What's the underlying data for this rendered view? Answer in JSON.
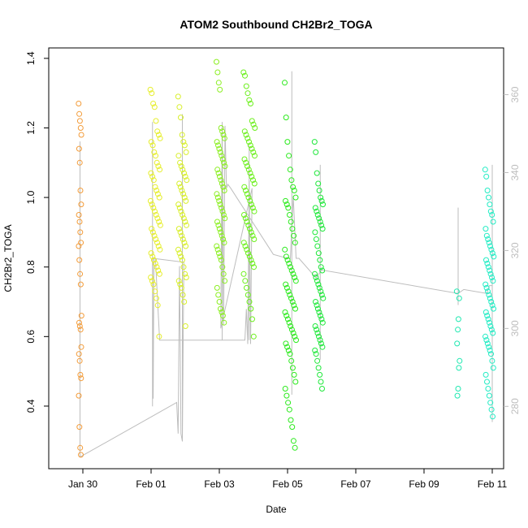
{
  "chart_data": {
    "type": "scatter",
    "title": "ATOM2 Southbound CH2Br2_TOGA",
    "xlabel": "Date",
    "ylabel": "CH2Br2_TOGA",
    "xlim": [
      "2017-01-29T00:00",
      "2017-02-11T08:00"
    ],
    "ylim": [
      0.22,
      1.43
    ],
    "y2lim": [
      264,
      372
    ],
    "x_ticks": [
      {
        "label": "Jan 30",
        "date": "2017-01-30"
      },
      {
        "label": "Feb 01",
        "date": "2017-02-01"
      },
      {
        "label": "Feb 03",
        "date": "2017-02-03"
      },
      {
        "label": "Feb 05",
        "date": "2017-02-05"
      },
      {
        "label": "Feb 07",
        "date": "2017-02-07"
      },
      {
        "label": "Feb 09",
        "date": "2017-02-09"
      },
      {
        "label": "Feb 11",
        "date": "2017-02-11"
      }
    ],
    "y_ticks": [
      0.4,
      0.6,
      0.8,
      1.0,
      1.2,
      1.4
    ],
    "y_tick_labels": [
      "0.4",
      "0.6",
      "0.8",
      "1.0",
      "1.2",
      "1.4"
    ],
    "y2_ticks": [
      280,
      300,
      320,
      340,
      360
    ],
    "y2_tick_labels": [
      "280",
      "300",
      "320",
      "340",
      "360"
    ],
    "grid": false,
    "secondary_line_color": "#bdbdbd",
    "clusters": [
      {
        "center": "2017-01-29T22:00",
        "width_h": 2,
        "color": "#f39c3a",
        "values": [
          1.27,
          1.24,
          1.22,
          1.2,
          1.18,
          1.14,
          1.1,
          1.02,
          0.98,
          0.95,
          0.93,
          0.9,
          0.87,
          0.86,
          0.82,
          0.78,
          0.75,
          0.66,
          0.64,
          0.63,
          0.62,
          0.57,
          0.55,
          0.53,
          0.49,
          0.48,
          0.43,
          0.34,
          0.28,
          0.26
        ]
      },
      {
        "center": "2017-02-01T03:00",
        "width_h": 7,
        "color": "#e6ee2c",
        "values": [
          1.31,
          1.3,
          1.27,
          1.26,
          1.22,
          1.19,
          1.18,
          1.17,
          1.16,
          1.15,
          1.13,
          1.12,
          1.1,
          1.09,
          1.08,
          1.07,
          1.06,
          1.05,
          1.03,
          1.02,
          1.01,
          1.0,
          0.99,
          0.98,
          0.97,
          0.96,
          0.95,
          0.94,
          0.93,
          0.92,
          0.91,
          0.9,
          0.89,
          0.88,
          0.87,
          0.86,
          0.85,
          0.84,
          0.83,
          0.82,
          0.81,
          0.8,
          0.79,
          0.78,
          0.77,
          0.76,
          0.75,
          0.73,
          0.71,
          0.69,
          0.6
        ]
      },
      {
        "center": "2017-02-01T22:00",
        "width_h": 6,
        "color": "#d8ef2a",
        "values": [
          1.29,
          1.26,
          1.23,
          1.18,
          1.16,
          1.15,
          1.13,
          1.12,
          1.1,
          1.09,
          1.08,
          1.07,
          1.06,
          1.05,
          1.04,
          1.03,
          1.02,
          1.01,
          1.0,
          0.99,
          0.98,
          0.97,
          0.96,
          0.95,
          0.94,
          0.93,
          0.92,
          0.91,
          0.9,
          0.89,
          0.88,
          0.87,
          0.86,
          0.85,
          0.84,
          0.83,
          0.82,
          0.8,
          0.78,
          0.77,
          0.76,
          0.75,
          0.74,
          0.72,
          0.7,
          0.63
        ]
      },
      {
        "center": "2017-02-03T01:00",
        "width_h": 6,
        "color": "#8cef22",
        "values": [
          1.39,
          1.36,
          1.33,
          1.31,
          1.2,
          1.19,
          1.18,
          1.17,
          1.16,
          1.15,
          1.14,
          1.13,
          1.12,
          1.11,
          1.1,
          1.09,
          1.08,
          1.07,
          1.06,
          1.05,
          1.04,
          1.03,
          1.02,
          1.01,
          1.0,
          0.99,
          0.98,
          0.97,
          0.96,
          0.95,
          0.94,
          0.93,
          0.92,
          0.91,
          0.9,
          0.89,
          0.88,
          0.87,
          0.86,
          0.85,
          0.84,
          0.83,
          0.82,
          0.8,
          0.78,
          0.76,
          0.74,
          0.72,
          0.7,
          0.68,
          0.67,
          0.66,
          0.64
        ]
      },
      {
        "center": "2017-02-03T21:00",
        "width_h": 8,
        "color": "#6cef1c",
        "values": [
          1.36,
          1.35,
          1.32,
          1.3,
          1.28,
          1.27,
          1.22,
          1.21,
          1.2,
          1.19,
          1.18,
          1.17,
          1.16,
          1.15,
          1.14,
          1.13,
          1.12,
          1.11,
          1.1,
          1.09,
          1.08,
          1.07,
          1.06,
          1.05,
          1.04,
          1.03,
          1.02,
          1.01,
          1.0,
          0.99,
          0.98,
          0.97,
          0.96,
          0.95,
          0.94,
          0.93,
          0.92,
          0.91,
          0.9,
          0.89,
          0.88,
          0.87,
          0.86,
          0.85,
          0.84,
          0.83,
          0.82,
          0.81,
          0.8,
          0.78,
          0.76,
          0.74,
          0.72,
          0.7,
          0.68,
          0.65,
          0.6
        ]
      },
      {
        "center": "2017-02-05T02:00",
        "width_h": 8,
        "color": "#2bea1c",
        "values": [
          1.33,
          1.23,
          1.16,
          1.12,
          1.08,
          1.05,
          1.03,
          1.02,
          1.0,
          0.99,
          0.98,
          0.97,
          0.95,
          0.93,
          0.91,
          0.89,
          0.87,
          0.85,
          0.83,
          0.82,
          0.81,
          0.8,
          0.79,
          0.78,
          0.77,
          0.76,
          0.75,
          0.74,
          0.73,
          0.72,
          0.71,
          0.7,
          0.69,
          0.68,
          0.67,
          0.66,
          0.65,
          0.64,
          0.63,
          0.62,
          0.61,
          0.6,
          0.59,
          0.58,
          0.57,
          0.56,
          0.55,
          0.53,
          0.51,
          0.49,
          0.47,
          0.45,
          0.43,
          0.41,
          0.39,
          0.36,
          0.34,
          0.3,
          0.28
        ]
      },
      {
        "center": "2017-02-05T22:00",
        "width_h": 6,
        "color": "#1ee83a",
        "values": [
          1.16,
          1.13,
          1.07,
          1.04,
          1.02,
          1.0,
          0.99,
          0.98,
          0.97,
          0.96,
          0.95,
          0.94,
          0.93,
          0.92,
          0.91,
          0.9,
          0.88,
          0.86,
          0.84,
          0.82,
          0.8,
          0.79,
          0.78,
          0.77,
          0.76,
          0.75,
          0.74,
          0.73,
          0.72,
          0.71,
          0.7,
          0.69,
          0.68,
          0.67,
          0.66,
          0.65,
          0.64,
          0.63,
          0.62,
          0.61,
          0.6,
          0.59,
          0.58,
          0.57,
          0.56,
          0.55,
          0.53,
          0.51,
          0.49,
          0.47,
          0.45
        ]
      },
      {
        "center": "2017-02-10T00:00",
        "width_h": 2,
        "color": "#1ee8b0",
        "values": [
          0.73,
          0.71,
          0.65,
          0.62,
          0.58,
          0.53,
          0.51,
          0.45,
          0.43
        ]
      },
      {
        "center": "2017-02-10T22:00",
        "width_h": 6,
        "color": "#22ecc4",
        "values": [
          1.08,
          1.06,
          1.02,
          1.0,
          0.98,
          0.96,
          0.95,
          0.93,
          0.91,
          0.89,
          0.88,
          0.87,
          0.86,
          0.85,
          0.84,
          0.83,
          0.82,
          0.81,
          0.8,
          0.79,
          0.78,
          0.77,
          0.76,
          0.75,
          0.74,
          0.73,
          0.72,
          0.71,
          0.7,
          0.69,
          0.68,
          0.67,
          0.66,
          0.65,
          0.64,
          0.63,
          0.62,
          0.61,
          0.6,
          0.59,
          0.58,
          0.57,
          0.56,
          0.55,
          0.53,
          0.51,
          0.49,
          0.47,
          0.45,
          0.43,
          0.41,
          0.39,
          0.37
        ]
      }
    ],
    "secondary_series": [
      [
        "2017-01-29T22:00",
        267
      ],
      [
        "2017-02-01T18:00",
        281
      ],
      [
        "2017-02-01T19:00",
        273
      ],
      [
        "2017-02-01T20:00",
        316
      ],
      [
        "2017-02-01T21:00",
        273
      ],
      [
        "2017-02-01T22:00",
        271
      ],
      [
        "2017-02-01T23:00",
        317
      ],
      [
        "2017-02-01T01:00",
        318
      ],
      [
        "2017-02-01T01:30",
        282
      ],
      [
        "2017-02-01T02:00",
        318
      ],
      [
        "2017-02-01T03:00",
        318
      ],
      [
        "2017-02-01T06:00",
        297
      ],
      [
        "2017-02-03T18:00",
        297
      ],
      [
        "2017-02-03T19:00",
        305
      ],
      [
        "2017-02-03T20:00",
        296
      ],
      [
        "2017-02-03T21:00",
        338
      ],
      [
        "2017-02-03T22:00",
        296
      ],
      [
        "2017-02-03T23:00",
        336
      ],
      [
        "2017-02-03T01:00",
        300
      ],
      [
        "2017-02-03T02:00",
        353
      ],
      [
        "2017-02-03T03:00",
        301
      ],
      [
        "2017-02-03T04:00",
        352
      ],
      [
        "2017-02-03T05:00",
        336
      ],
      [
        "2017-02-03T06:00",
        337
      ],
      [
        "2017-02-03T08:00",
        336
      ],
      [
        "2017-02-04T14:00",
        319
      ],
      [
        "2017-02-05T00:00",
        318
      ],
      [
        "2017-02-05T02:00",
        318
      ],
      [
        "2017-02-05T04:00",
        334
      ],
      [
        "2017-02-05T06:00",
        318
      ],
      [
        "2017-02-05T08:00",
        318
      ],
      [
        "2017-02-05T20:00",
        313
      ],
      [
        "2017-02-05T22:00",
        314
      ],
      [
        "2017-02-06T00:00",
        315
      ],
      [
        "2017-02-10T00:00",
        309
      ],
      [
        "2017-02-10T04:00",
        310
      ],
      [
        "2017-02-10T20:00",
        309
      ],
      [
        "2017-02-10T22:00",
        311
      ],
      [
        "2017-02-11T00:00",
        311
      ]
    ],
    "secondary_spikes": [
      [
        "2017-01-29T22:00",
        267,
        348
      ],
      [
        "2017-02-01T01:00",
        280,
        353
      ],
      [
        "2017-02-01T22:00",
        271,
        355
      ],
      [
        "2017-02-03T02:00",
        297,
        352
      ],
      [
        "2017-02-03T21:00",
        297,
        347
      ],
      [
        "2017-02-05T03:00",
        283,
        366
      ],
      [
        "2017-02-05T23:00",
        292,
        342
      ],
      [
        "2017-02-10T00:00",
        306,
        331
      ],
      [
        "2017-02-11T00:00",
        276,
        342
      ]
    ]
  }
}
